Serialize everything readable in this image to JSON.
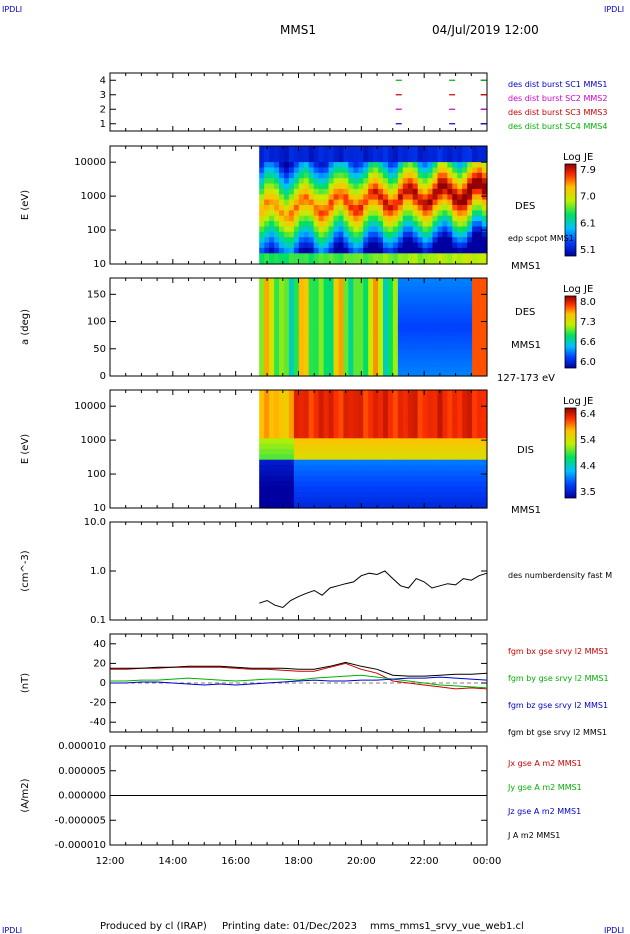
{
  "header": {
    "corner_tl": "IPDLI",
    "corner_tr": "IPDLI",
    "corner_bl": "IPDLI",
    "corner_br": "IPDLI",
    "spacecraft": "MMS1",
    "datetime": "04/Jul/2019 12:00"
  },
  "footer": {
    "produced_by": "Produced by cl (IRAP)",
    "printing_date": "Printing date: 01/Dec/2023",
    "file": "mms_mms1_srvy_vue_web1.cl"
  },
  "colors": {
    "red": "#cc0000",
    "green": "#00b000",
    "blue": "#0000cc",
    "magenta": "#cc00cc",
    "black": "#000000",
    "frame": "#000000"
  },
  "chart_data": [
    {
      "type": "line",
      "panel": "burst-availability",
      "ylim": [
        0.5,
        4.5
      ],
      "yticks": [
        "1",
        "2",
        "3",
        "4"
      ],
      "series": [
        {
          "name": "des dist burst SC1 MMS1",
          "color": "#0000cc",
          "level": 1
        },
        {
          "name": "des dist burst SC2 MMS2",
          "color": "#cc00cc",
          "level": 2
        },
        {
          "name": "des dist burst SC3 MMS3",
          "color": "#cc0000",
          "level": 3
        },
        {
          "name": "des dist burst SC4 MMS4",
          "color": "#00b000",
          "level": 4
        }
      ],
      "burst_intervals_hours": [
        [
          21.0,
          21.3
        ],
        [
          22.7,
          23.0
        ],
        [
          23.7,
          24.0
        ]
      ]
    },
    {
      "type": "heatmap",
      "panel": "des-energy",
      "ylabel": "E (eV)",
      "yscale": "log",
      "ylim": [
        10,
        30000
      ],
      "yticks": [
        "10",
        "100",
        "1000",
        "10000"
      ],
      "colorbar": {
        "title": "Log JE",
        "ticks": [
          "7.9",
          "7.0",
          "6.1",
          "5.1"
        ],
        "range": [
          5.1,
          7.9
        ]
      },
      "labels": [
        "DES",
        "edp scpot MMS1",
        "MMS1"
      ],
      "data_start_hours": 16.75
    },
    {
      "type": "heatmap",
      "panel": "des-pitch",
      "ylabel": "a (deg)",
      "ylim": [
        0,
        180
      ],
      "yticks": [
        "0",
        "50",
        "100",
        "150"
      ],
      "colorbar": {
        "title": "Log JE",
        "ticks": [
          "8.0",
          "7.3",
          "6.6",
          "6.0"
        ],
        "range": [
          6.0,
          8.0
        ]
      },
      "labels": [
        "DES",
        "MMS1",
        "127-173 eV"
      ],
      "data_start_hours": 16.75
    },
    {
      "type": "heatmap",
      "panel": "dis-energy",
      "ylabel": "E (eV)",
      "yscale": "log",
      "ylim": [
        10,
        30000
      ],
      "yticks": [
        "10",
        "100",
        "1000",
        "10000"
      ],
      "colorbar": {
        "title": "Log JE",
        "ticks": [
          "6.4",
          "5.4",
          "4.4",
          "3.5"
        ],
        "range": [
          3.5,
          6.4
        ]
      },
      "labels": [
        "DIS",
        "MMS1"
      ],
      "data_start_hours": 16.75
    },
    {
      "type": "line",
      "panel": "density",
      "ylabel": "(cm^-3)",
      "yscale": "log",
      "ylim": [
        0.1,
        10.0
      ],
      "yticks": [
        "0.1",
        "1.0",
        "10.0"
      ],
      "series": [
        {
          "name": "des numberdensity fast M",
          "color": "#000000",
          "x": [
            16.75,
            17.0,
            17.25,
            17.5,
            17.75,
            18.0,
            18.25,
            18.5,
            18.75,
            19.0,
            19.25,
            19.5,
            19.75,
            20.0,
            20.25,
            20.5,
            20.75,
            21.0,
            21.25,
            21.5,
            21.75,
            22.0,
            22.25,
            22.5,
            22.75,
            23.0,
            23.25,
            23.5,
            23.75,
            24.0
          ],
          "y": [
            0.22,
            0.25,
            0.2,
            0.18,
            0.25,
            0.3,
            0.35,
            0.4,
            0.32,
            0.45,
            0.5,
            0.55,
            0.6,
            0.8,
            0.9,
            0.85,
            1.0,
            0.7,
            0.5,
            0.45,
            0.7,
            0.6,
            0.45,
            0.5,
            0.55,
            0.52,
            0.7,
            0.65,
            0.8,
            0.9
          ]
        }
      ]
    },
    {
      "type": "line",
      "panel": "fgm",
      "ylabel": "(nT)",
      "ylim": [
        -50,
        50
      ],
      "yticks": [
        "-40",
        "-20",
        "0",
        "20",
        "40"
      ],
      "x": [
        12.0,
        12.5,
        13.0,
        13.5,
        14.0,
        14.5,
        15.0,
        15.5,
        16.0,
        16.5,
        17.0,
        17.5,
        18.0,
        18.5,
        19.0,
        19.5,
        20.0,
        20.5,
        21.0,
        21.5,
        22.0,
        22.5,
        23.0,
        23.5,
        24.0
      ],
      "series": [
        {
          "name": "fgm bx gse srvy l2 MMS1",
          "color": "#cc0000",
          "values": [
            14,
            14,
            15,
            15,
            16,
            16,
            16,
            16,
            15,
            14,
            14,
            13,
            12,
            12,
            16,
            20,
            14,
            10,
            2,
            0,
            -2,
            -4,
            -6,
            -5,
            -6
          ]
        },
        {
          "name": "fgm by gse srvy l2 MMS1",
          "color": "#00b000",
          "values": [
            2,
            2,
            3,
            3,
            4,
            5,
            4,
            3,
            2,
            3,
            4,
            4,
            3,
            5,
            6,
            7,
            8,
            6,
            4,
            2,
            0,
            -2,
            -3,
            -4,
            -5
          ]
        },
        {
          "name": "fgm bz gse srvy l2 MMS1",
          "color": "#0000cc",
          "values": [
            0,
            0,
            1,
            1,
            0,
            -1,
            -2,
            -1,
            -2,
            -1,
            0,
            1,
            2,
            3,
            2,
            2,
            3,
            3,
            4,
            5,
            5,
            6,
            5,
            4,
            3
          ]
        },
        {
          "name": "fgm bt gse srvy l2 MMS1",
          "color": "#000000",
          "values": [
            15,
            15,
            15,
            16,
            16,
            17,
            17,
            17,
            16,
            15,
            15,
            15,
            14,
            14,
            17,
            21,
            17,
            14,
            8,
            7,
            7,
            8,
            9,
            9,
            10
          ]
        }
      ]
    },
    {
      "type": "line",
      "panel": "current",
      "ylabel": "(A/m2)",
      "ylim": [
        -1e-05,
        1e-05
      ],
      "yticks": [
        "-0.000010",
        "-0.000005",
        "0.000000",
        "0.000005",
        "0.000010"
      ],
      "series": [
        {
          "name": "Jx gse A m2 MMS1",
          "color": "#cc0000"
        },
        {
          "name": "Jy gse A m2 MMS1",
          "color": "#00b000"
        },
        {
          "name": "Jz gse A m2 MMS1",
          "color": "#0000cc"
        },
        {
          "name": "J A m2 MMS1",
          "color": "#000000"
        }
      ]
    }
  ],
  "xaxis": {
    "range_hours": [
      12,
      24
    ],
    "ticks": [
      "12:00",
      "14:00",
      "16:00",
      "18:00",
      "20:00",
      "22:00",
      "00:00"
    ]
  }
}
